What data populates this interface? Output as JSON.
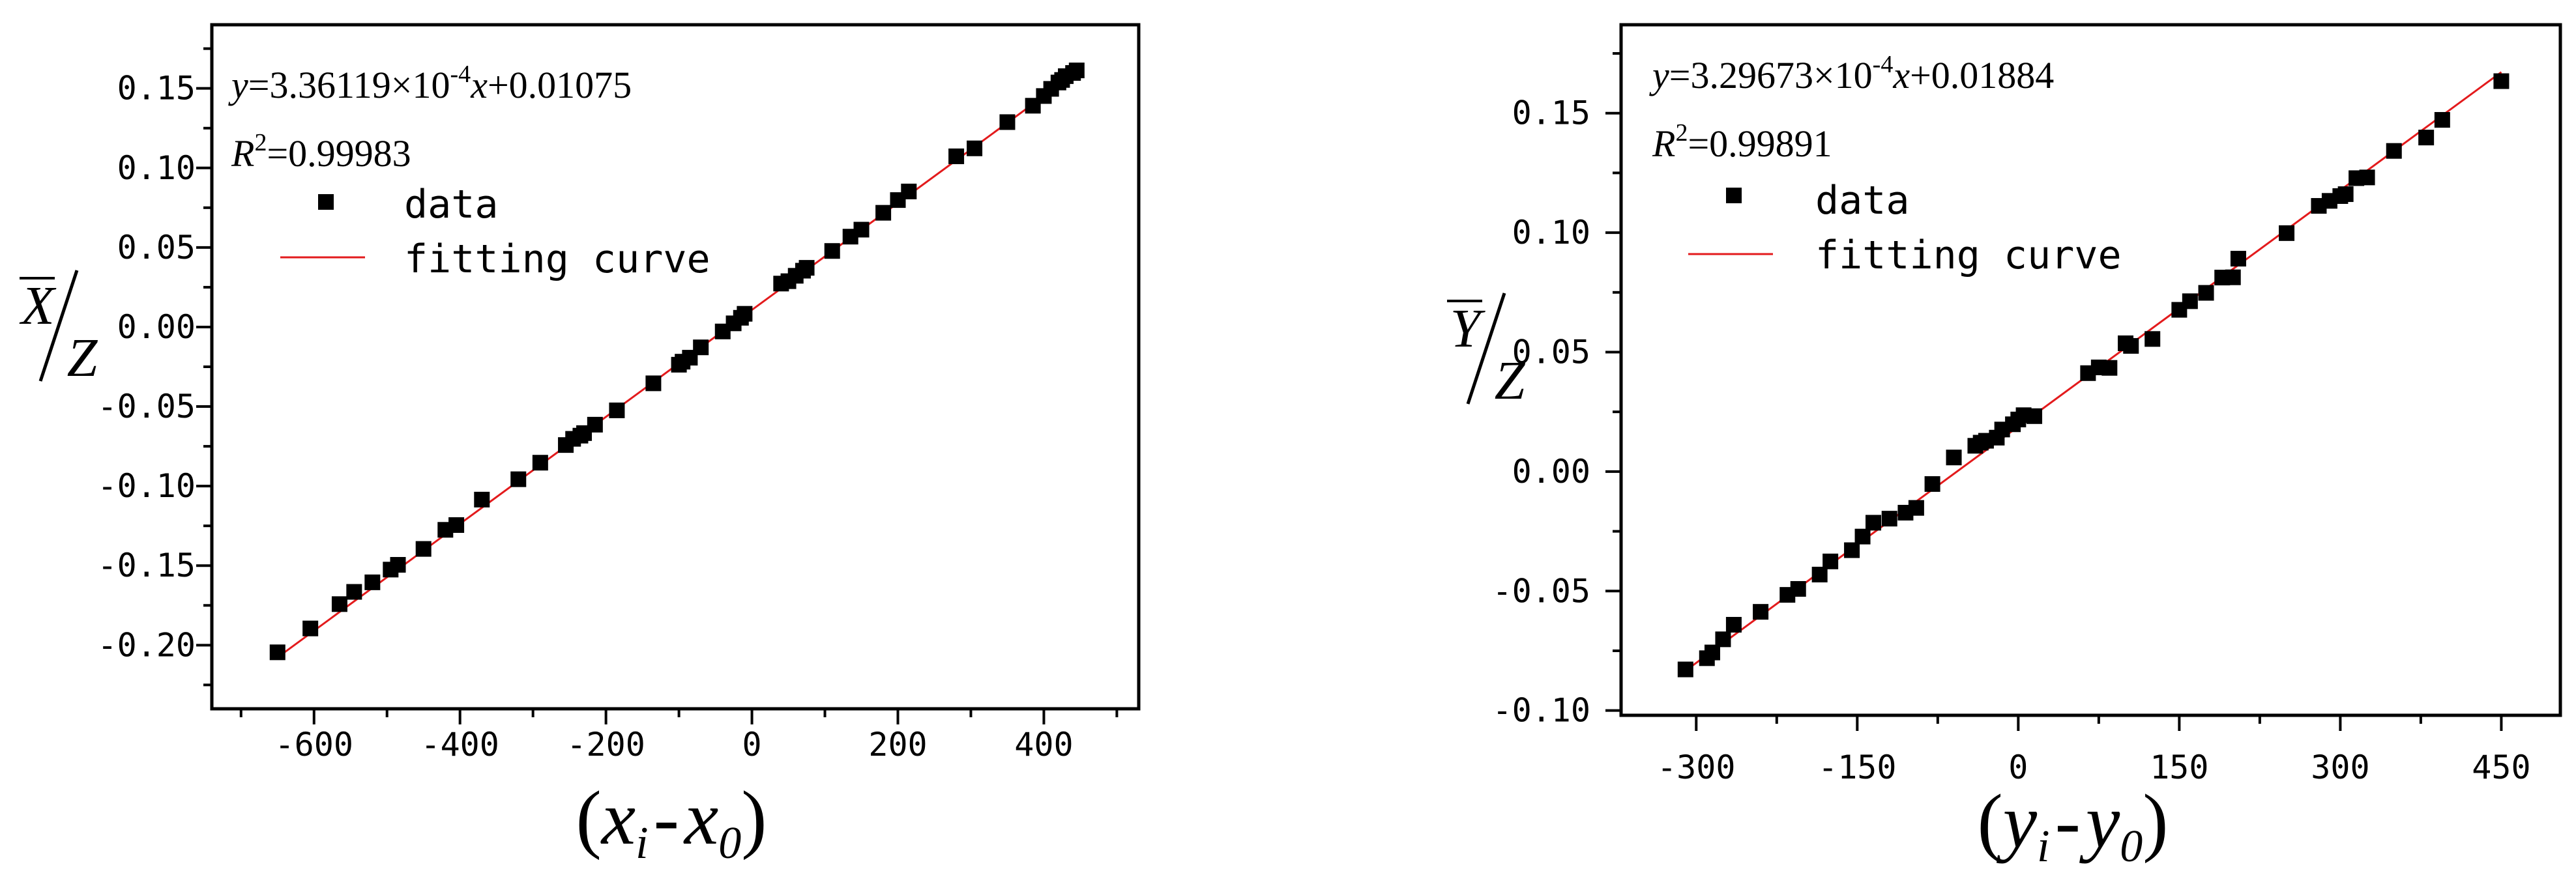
{
  "chart_data": [
    {
      "type": "scatter",
      "title": "",
      "equation": {
        "lhs": "y",
        "rhs_prefix": "=3.36119×10",
        "exponent": "-4",
        "var": "x",
        "rhs_suffix": "+0.01075"
      },
      "r2": {
        "symbol": "R",
        "sup": "2",
        "value": "=0.99983"
      },
      "xlabel": {
        "a": "x",
        "a_sub": "i",
        "dash": "-",
        "b": "x",
        "b_sub": "0"
      },
      "ylabel": {
        "num": "X",
        "den": "Z"
      },
      "xlim": [
        -740,
        530
      ],
      "ylim": [
        -0.24,
        0.19
      ],
      "xticks": [
        -600,
        -400,
        -200,
        0,
        200,
        400
      ],
      "xtick_labels": [
        "-600",
        "-400",
        "-200",
        "0",
        "200",
        "400"
      ],
      "yticks": [
        -0.2,
        -0.15,
        -0.1,
        -0.05,
        0.0,
        0.05,
        0.1,
        0.15
      ],
      "ytick_labels": [
        "-0.20",
        "-0.15",
        "-0.10",
        "-0.05",
        "0.00",
        "0.05",
        "0.10",
        "0.15"
      ],
      "legend": {
        "position": "top-left",
        "data_label": "data",
        "fit_label": "fitting curve"
      },
      "fit": {
        "slope": 0.000336119,
        "intercept": 0.01075,
        "x_range": [
          -650,
          450
        ]
      },
      "colors": {
        "data": "#000000",
        "fit": "#e31a1c"
      },
      "series": [
        {
          "x": [
            -650,
            -605,
            -565,
            -545,
            -520,
            -495,
            -485,
            -450,
            -420,
            -405,
            -370,
            -320,
            -290,
            -255,
            -245,
            -235,
            -230,
            -215,
            -185,
            -135,
            -100,
            -95,
            -85,
            -70,
            -40,
            -25,
            -15,
            -10,
            40,
            50,
            60,
            70,
            75,
            110,
            135,
            150,
            180,
            200,
            215,
            280,
            305,
            350,
            385,
            400,
            410,
            420,
            425,
            430,
            440,
            445
          ],
          "y": [
            -0.2045,
            -0.1895,
            -0.1742,
            -0.1665,
            -0.1605,
            -0.1525,
            -0.1495,
            -0.1395,
            -0.1275,
            -0.1245,
            -0.1085,
            -0.0957,
            -0.0853,
            -0.0742,
            -0.0703,
            -0.0683,
            -0.0667,
            -0.0614,
            -0.0524,
            -0.0354,
            -0.0237,
            -0.0218,
            -0.0193,
            -0.0128,
            -0.0028,
            0.0023,
            0.0058,
            0.0083,
            0.0273,
            0.0288,
            0.0322,
            0.0354,
            0.0372,
            0.0478,
            0.0568,
            0.0612,
            0.0718,
            0.0798,
            0.0852,
            0.1073,
            0.1123,
            0.1288,
            0.1391,
            0.1452,
            0.1497,
            0.1537,
            0.1553,
            0.1577,
            0.1597,
            0.1613
          ]
        }
      ]
    },
    {
      "type": "scatter",
      "title": "",
      "equation": {
        "lhs": "y",
        "rhs_prefix": "=3.29673×10",
        "exponent": "-4",
        "var": "x",
        "rhs_suffix": "+0.01884"
      },
      "r2": {
        "symbol": "R",
        "sup": "2",
        "value": "=0.99891"
      },
      "xlabel": {
        "a": "y",
        "a_sub": "i",
        "dash": "-",
        "b": "y",
        "b_sub": "0"
      },
      "ylabel": {
        "num": "Y",
        "den": "Z"
      },
      "xlim": [
        -370,
        505
      ],
      "ylim": [
        -0.102,
        0.187
      ],
      "xticks": [
        -300,
        -150,
        0,
        150,
        300,
        450
      ],
      "xtick_labels": [
        "-300",
        "-150",
        "0",
        "150",
        "300",
        "450"
      ],
      "yticks": [
        -0.1,
        -0.05,
        0.0,
        0.05,
        0.1,
        0.15
      ],
      "ytick_labels": [
        "-0.10",
        "-0.05",
        "0.00",
        "0.05",
        "0.10",
        "0.15"
      ],
      "legend": {
        "position": "top-left",
        "data_label": "data",
        "fit_label": "fitting curve"
      },
      "fit": {
        "slope": 0.000329673,
        "intercept": 0.01884,
        "x_range": [
          -310,
          450
        ]
      },
      "colors": {
        "data": "#000000",
        "fit": "#e31a1c"
      },
      "series": [
        {
          "x": [
            -310,
            -290,
            -285,
            -275,
            -265,
            -240,
            -215,
            -205,
            -185,
            -175,
            -155,
            -145,
            -135,
            -120,
            -105,
            -95,
            -80,
            -60,
            -40,
            -35,
            -30,
            -20,
            -15,
            -5,
            0,
            5,
            15,
            65,
            75,
            85,
            100,
            105,
            125,
            150,
            160,
            175,
            190,
            200,
            205,
            250,
            280,
            290,
            300,
            305,
            315,
            325,
            350,
            380,
            395,
            450
          ],
          "y": [
            -0.0828,
            -0.0781,
            -0.0757,
            -0.0702,
            -0.0641,
            -0.0587,
            -0.0516,
            -0.0491,
            -0.0431,
            -0.0376,
            -0.0329,
            -0.0272,
            -0.0214,
            -0.0197,
            -0.0172,
            -0.0152,
            -0.0052,
            0.0059,
            0.0108,
            0.0121,
            0.0129,
            0.0142,
            0.0176,
            0.0198,
            0.0218,
            0.0236,
            0.0232,
            0.0412,
            0.0436,
            0.0434,
            0.0537,
            0.0526,
            0.0555,
            0.0677,
            0.0713,
            0.0748,
            0.0812,
            0.0813,
            0.0891,
            0.0998,
            0.1112,
            0.1133,
            0.1153,
            0.1161,
            0.1228,
            0.1231,
            0.1342,
            0.1398,
            0.1472,
            0.1634
          ]
        }
      ]
    }
  ]
}
